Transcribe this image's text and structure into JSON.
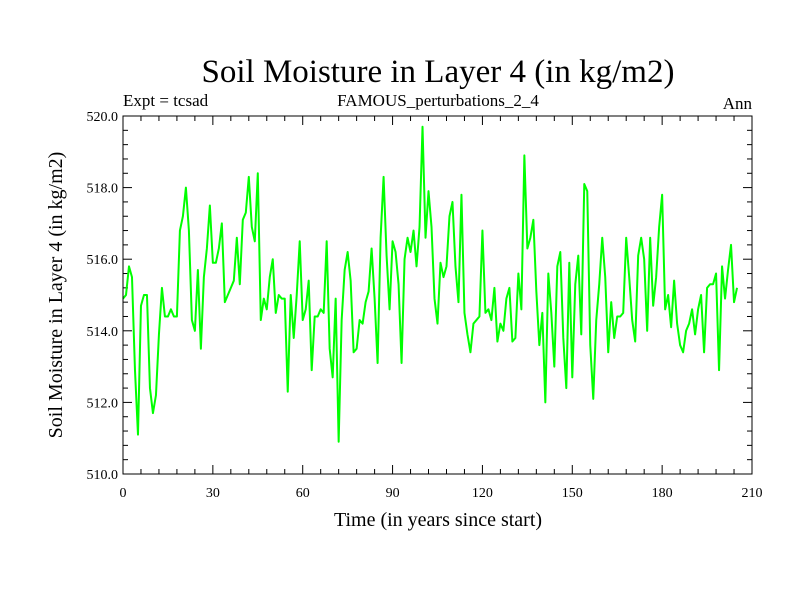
{
  "chart_data": {
    "type": "line",
    "title": "Soil Moisture in Layer 4 (in kg/m2)",
    "subtitle_left": "Expt = tcsad",
    "subtitle_center": "FAMOUS_perturbations_2_4",
    "subtitle_right": "Ann",
    "xlabel": "Time (in years since start)",
    "ylabel": "Soil Moisture in Layer 4 (in kg/m2)",
    "xlim": [
      0,
      210
    ],
    "ylim": [
      510,
      520
    ],
    "x_ticks": [
      0,
      30,
      60,
      90,
      120,
      150,
      180,
      210
    ],
    "x_tick_labels": [
      "0",
      "30",
      "60",
      "90",
      "120",
      "150",
      "180",
      "210"
    ],
    "y_ticks": [
      510,
      512,
      514,
      516,
      518,
      520
    ],
    "y_tick_labels": [
      "510.0",
      "512.0",
      "514.0",
      "516.0",
      "518.0",
      "520.0"
    ],
    "series": [
      {
        "name": "Ann",
        "color": "#00ff00",
        "x_start": 0,
        "x_step": 1,
        "values": [
          514.9,
          515.0,
          515.8,
          515.5,
          512.9,
          511.1,
          514.7,
          515.0,
          515.0,
          512.4,
          511.7,
          512.2,
          513.9,
          515.2,
          514.4,
          514.4,
          514.6,
          514.4,
          514.4,
          516.8,
          517.2,
          518.0,
          516.8,
          514.3,
          514.0,
          515.7,
          513.5,
          515.5,
          516.3,
          517.5,
          515.9,
          515.9,
          516.3,
          517.0,
          514.8,
          515.0,
          515.2,
          515.4,
          516.6,
          515.3,
          517.1,
          517.3,
          518.3,
          516.9,
          516.5,
          518.4,
          514.3,
          514.9,
          514.6,
          515.5,
          516.0,
          514.5,
          515.0,
          514.9,
          514.9,
          512.3,
          515.0,
          513.8,
          515.0,
          516.5,
          514.3,
          514.6,
          515.4,
          512.9,
          514.4,
          514.4,
          514.6,
          514.5,
          516.5,
          513.5,
          512.7,
          514.9,
          510.9,
          514.3,
          515.7,
          516.2,
          515.4,
          513.4,
          513.5,
          514.3,
          514.2,
          514.8,
          515.1,
          516.3,
          514.9,
          513.1,
          516.6,
          518.3,
          516.1,
          514.6,
          516.5,
          516.2,
          515.3,
          513.1,
          516.0,
          516.6,
          516.2,
          516.8,
          515.8,
          516.9,
          519.7,
          516.6,
          517.9,
          516.9,
          514.9,
          514.2,
          515.9,
          515.5,
          515.8,
          517.2,
          517.6,
          515.8,
          514.8,
          517.8,
          514.5,
          513.9,
          513.4,
          514.2,
          514.3,
          514.4,
          516.8,
          514.5,
          514.6,
          514.3,
          515.2,
          513.7,
          514.2,
          514.0,
          514.9,
          515.2,
          513.7,
          513.8,
          515.6,
          514.6,
          518.9,
          516.3,
          516.6,
          517.1,
          515.1,
          513.6,
          514.5,
          512.0,
          515.6,
          514.5,
          513.0,
          515.8,
          516.2,
          513.8,
          512.4,
          515.9,
          512.7,
          515.3,
          516.1,
          513.9,
          518.1,
          517.9,
          513.6,
          512.1,
          514.3,
          515.3,
          516.6,
          515.5,
          513.4,
          514.8,
          513.8,
          514.4,
          514.4,
          514.5,
          516.6,
          515.5,
          514.3,
          513.7,
          516.1,
          516.6,
          516.0,
          514.0,
          516.6,
          514.7,
          515.5,
          516.9,
          517.8,
          514.6,
          515.0,
          514.1,
          515.4,
          514.2,
          513.6,
          513.4,
          514.0,
          514.2,
          514.6,
          513.9,
          514.6,
          515.0,
          513.4,
          515.2,
          515.3,
          515.3,
          515.6,
          512.9,
          515.8,
          514.9,
          515.7,
          516.4,
          514.8,
          515.2
        ]
      }
    ]
  }
}
